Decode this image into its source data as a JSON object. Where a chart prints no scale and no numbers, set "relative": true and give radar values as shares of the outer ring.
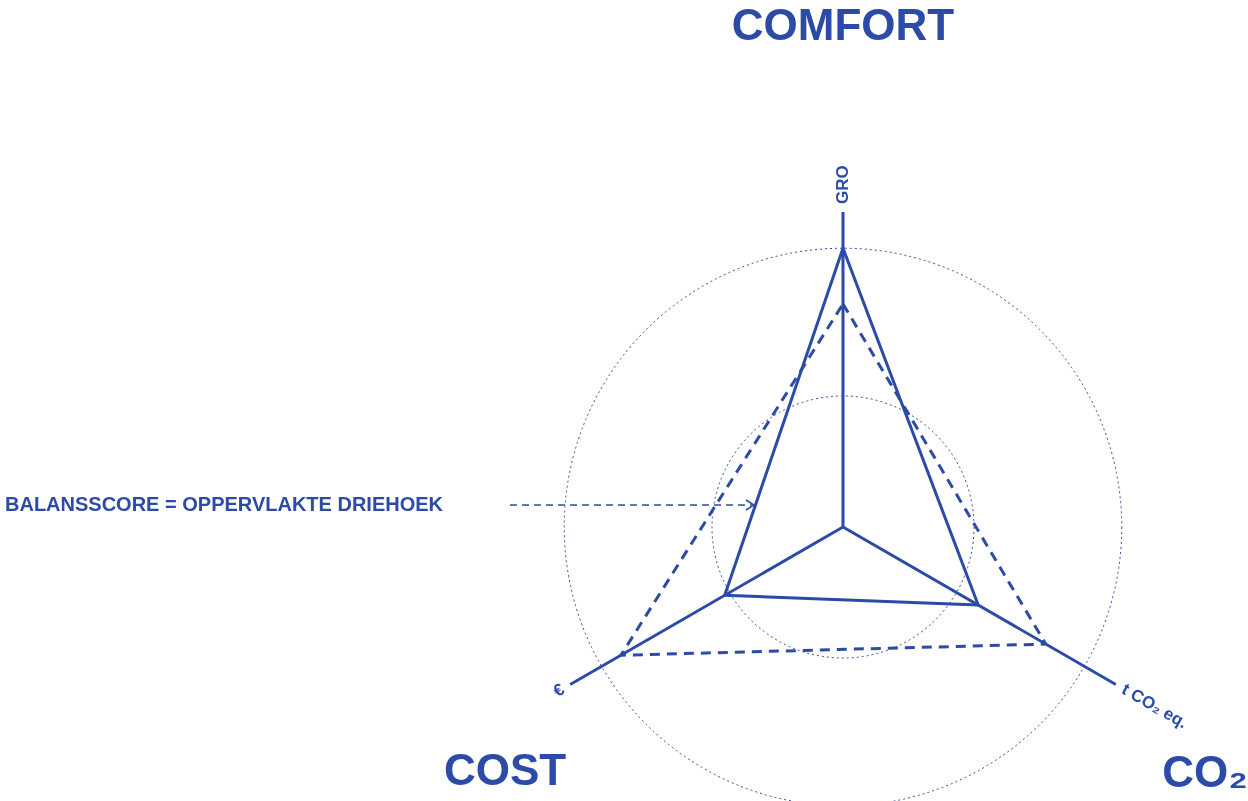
{
  "chart_data": {
    "type": "radar",
    "relative": true,
    "legend": false,
    "marker": "none",
    "categories": [
      "GRO",
      "t CO₂ eq.",
      "€"
    ],
    "series": [
      {
        "color": "#2b4ba6",
        "values": [
          1.0,
          0.56,
          0.49
        ],
        "line_style": "solid"
      },
      {
        "color": "#2b4ba6",
        "values": [
          0.8,
          0.84,
          0.92
        ],
        "line_style": "dashed"
      }
    ],
    "annotations": [
      "COMFORT",
      "CO₂",
      "COST",
      "BALANSSCORE = OPPERVLAKTE DRIEHOEK"
    ]
  }
}
